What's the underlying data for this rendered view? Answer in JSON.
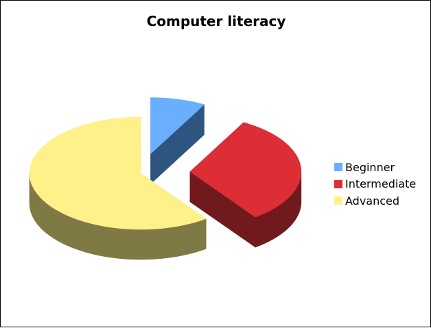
{
  "chart_data": {
    "type": "pie",
    "title": "Computer literacy",
    "categories": [
      "Beginner",
      "Intermediate",
      "Advanced"
    ],
    "values": [
      8,
      32,
      60
    ],
    "exploded": true,
    "three_d": true,
    "legend_position": "right",
    "colors": [
      "#6aafff",
      "#dd2d35",
      "#fff18a"
    ],
    "side_colors": [
      "#2e5480",
      "#701a1d",
      "#7f7a45"
    ]
  }
}
